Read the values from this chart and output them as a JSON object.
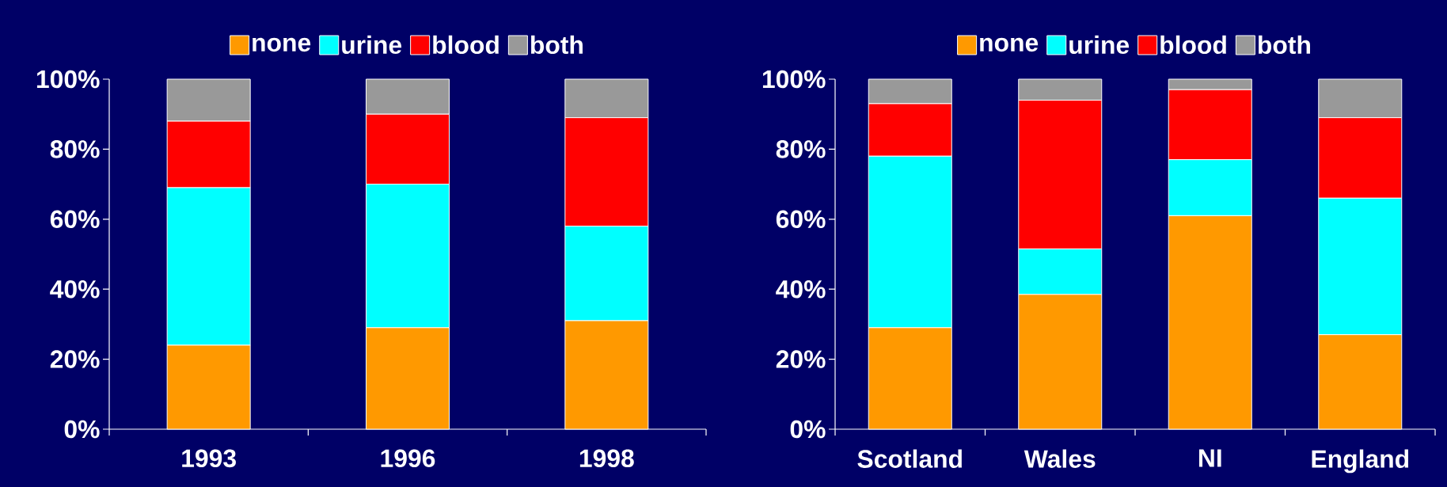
{
  "chart_data": [
    {
      "type": "bar",
      "stacked": true,
      "legend": "top",
      "categories": [
        "1993",
        "1996",
        "1998"
      ],
      "ylim": [
        0,
        100
      ],
      "yticks": [
        {
          "value": 0,
          "label": "0%"
        },
        {
          "value": 20,
          "label": "20%"
        },
        {
          "value": 40,
          "label": "40%"
        },
        {
          "value": 60,
          "label": "60%"
        },
        {
          "value": 80,
          "label": "80%"
        },
        {
          "value": 100,
          "label": "100%"
        }
      ],
      "series": [
        {
          "name": "none",
          "color": "#ff9900",
          "values": [
            24,
            29,
            31
          ]
        },
        {
          "name": "urine",
          "color": "#00ffff",
          "values": [
            45,
            41,
            27
          ]
        },
        {
          "name": "blood",
          "color": "#ff0000",
          "values": [
            19,
            20,
            31
          ]
        },
        {
          "name": "both",
          "color": "#999999",
          "values": [
            12,
            10,
            11
          ]
        }
      ]
    },
    {
      "type": "bar",
      "stacked": true,
      "legend": "top",
      "categories": [
        "Scotland",
        "Wales",
        "NI",
        "England"
      ],
      "ylim": [
        0,
        100
      ],
      "yticks": [
        {
          "value": 0,
          "label": "0%"
        },
        {
          "value": 20,
          "label": "20%"
        },
        {
          "value": 40,
          "label": "40%"
        },
        {
          "value": 60,
          "label": "60%"
        },
        {
          "value": 80,
          "label": "80%"
        },
        {
          "value": 100,
          "label": "100%"
        }
      ],
      "series": [
        {
          "name": "none",
          "color": "#ff9900",
          "values": [
            29,
            38.5,
            61,
            27
          ]
        },
        {
          "name": "urine",
          "color": "#00ffff",
          "values": [
            49,
            13,
            16,
            39
          ]
        },
        {
          "name": "blood",
          "color": "#ff0000",
          "values": [
            15,
            42.5,
            20,
            23
          ]
        },
        {
          "name": "both",
          "color": "#999999",
          "values": [
            7,
            6,
            3,
            11
          ]
        }
      ]
    }
  ]
}
